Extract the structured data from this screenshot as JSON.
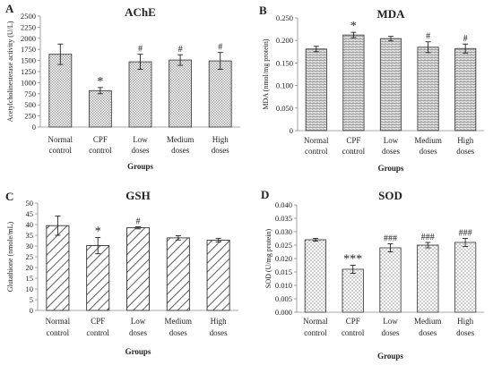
{
  "chart_data": [
    {
      "type": "bar",
      "panel_letter": "A",
      "title": "AChE",
      "ylabel": "Acetylcholinesterase activity (U/L)",
      "xlabel": "Groups",
      "categories": [
        [
          "Normal",
          "control"
        ],
        [
          "CPF",
          "control"
        ],
        [
          "Low",
          "doses"
        ],
        [
          "Medium",
          "doses"
        ],
        [
          "High",
          "doses"
        ]
      ],
      "values": [
        1640,
        820,
        1470,
        1510,
        1490
      ],
      "errors": [
        230,
        70,
        170,
        120,
        190
      ],
      "annotations": [
        "",
        "*",
        "#",
        "#",
        "#"
      ],
      "ylim": [
        0,
        2500
      ],
      "yticks": [
        0,
        250,
        500,
        750,
        1000,
        1250,
        1500,
        1750,
        2000,
        2250,
        2500
      ],
      "ytick_labels": [
        "0",
        "250",
        "500",
        "750",
        "1000",
        "1250",
        "1500",
        "1750",
        "2000",
        "2250",
        "2500"
      ],
      "pattern": "grid",
      "colors": {
        "fill": "#f2f2f2",
        "stroke": "#444444"
      }
    },
    {
      "type": "bar",
      "panel_letter": "B",
      "title": "MDA",
      "ylabel": "MDA (nmol/mg protein)",
      "xlabel": "Groups",
      "categories": [
        [
          "Normal",
          "control"
        ],
        [
          "CPF",
          "control"
        ],
        [
          "Low",
          "doses"
        ],
        [
          "Medium",
          "doses"
        ],
        [
          "High",
          "doses"
        ]
      ],
      "values": [
        0.181,
        0.212,
        0.204,
        0.185,
        0.182
      ],
      "errors": [
        0.006,
        0.006,
        0.005,
        0.012,
        0.01
      ],
      "annotations": [
        "",
        "*",
        "",
        "#",
        "#"
      ],
      "ylim": [
        0,
        0.25
      ],
      "yticks": [
        0,
        0.05,
        0.1,
        0.15,
        0.2,
        0.25
      ],
      "ytick_labels": [
        "0",
        "0.050",
        "0.100",
        "0.150",
        "0.200",
        "0.250"
      ],
      "pattern": "brick",
      "colors": {
        "fill": "#e6e6e6",
        "stroke": "#444444"
      }
    },
    {
      "type": "bar",
      "panel_letter": "C",
      "title": "GSH",
      "ylabel": "Glutathione (nmole/mL)",
      "xlabel": "Groups",
      "categories": [
        [
          "Normal",
          "control"
        ],
        [
          "CPF",
          "control"
        ],
        [
          "Low",
          "doses"
        ],
        [
          "Medium",
          "doses"
        ],
        [
          "High",
          "doses"
        ]
      ],
      "values": [
        39.5,
        30.2,
        38.5,
        33.8,
        32.7
      ],
      "errors": [
        4.5,
        3.8,
        0.5,
        1.0,
        0.8
      ],
      "annotations": [
        "",
        "*",
        "#",
        "",
        ""
      ],
      "ylim": [
        0,
        50
      ],
      "yticks": [
        0,
        5,
        10,
        15,
        20,
        25,
        30,
        35,
        40,
        45,
        50
      ],
      "ytick_labels": [
        "0",
        "5",
        "10",
        "15",
        "20",
        "25",
        "30",
        "35",
        "40",
        "45",
        "50"
      ],
      "pattern": "diagonal",
      "colors": {
        "fill": "#ffffff",
        "stroke": "#333333"
      }
    },
    {
      "type": "bar",
      "panel_letter": "D",
      "title": "SOD",
      "ylabel": "SOD (U/mg protein)",
      "xlabel": "Groups",
      "categories": [
        [
          "Normal",
          "control"
        ],
        [
          "CPF",
          "control"
        ],
        [
          "Low",
          "doses"
        ],
        [
          "Medium",
          "doses"
        ],
        [
          "High",
          "doses"
        ]
      ],
      "values": [
        0.027,
        0.016,
        0.024,
        0.025,
        0.026
      ],
      "errors": [
        0.0005,
        0.0015,
        0.0015,
        0.001,
        0.0015
      ],
      "annotations": [
        "",
        "***",
        "###",
        "###",
        "###"
      ],
      "ylim": [
        0,
        0.04
      ],
      "yticks": [
        0,
        0.005,
        0.01,
        0.015,
        0.02,
        0.025,
        0.03,
        0.035,
        0.04
      ],
      "ytick_labels": [
        "0.000",
        "0.005",
        "0.010",
        "0.015",
        "0.020",
        "0.025",
        "0.030",
        "0.035",
        "0.040"
      ],
      "pattern": "dots",
      "colors": {
        "fill": "#ffffff",
        "stroke": "#444444"
      }
    }
  ]
}
